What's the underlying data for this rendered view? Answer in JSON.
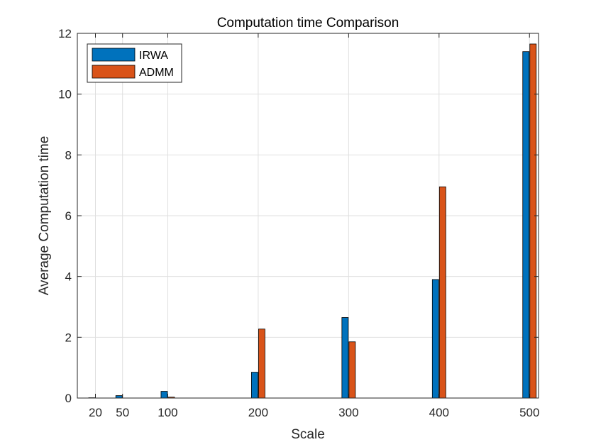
{
  "chart_data": {
    "type": "bar",
    "title": "Computation time Comparison",
    "xlabel": "Scale",
    "ylabel": "Average Computation time",
    "categories": [
      "20",
      "50",
      "100",
      "200",
      "300",
      "400",
      "500"
    ],
    "x": [
      20,
      50,
      100,
      200,
      300,
      400,
      500
    ],
    "xlim": [
      0,
      510
    ],
    "ylim": [
      0,
      12
    ],
    "yticks": [
      0,
      2,
      4,
      6,
      8,
      10,
      12
    ],
    "series": [
      {
        "name": "IRWA",
        "color": "#0072BD",
        "values": [
          0.01,
          0.08,
          0.22,
          0.85,
          2.65,
          3.9,
          11.4
        ]
      },
      {
        "name": "ADMM",
        "color": "#D95319",
        "values": [
          0.0,
          0.0,
          0.03,
          2.27,
          1.85,
          6.95,
          11.65
        ]
      }
    ],
    "grid": true,
    "legend_position": "top-left"
  }
}
